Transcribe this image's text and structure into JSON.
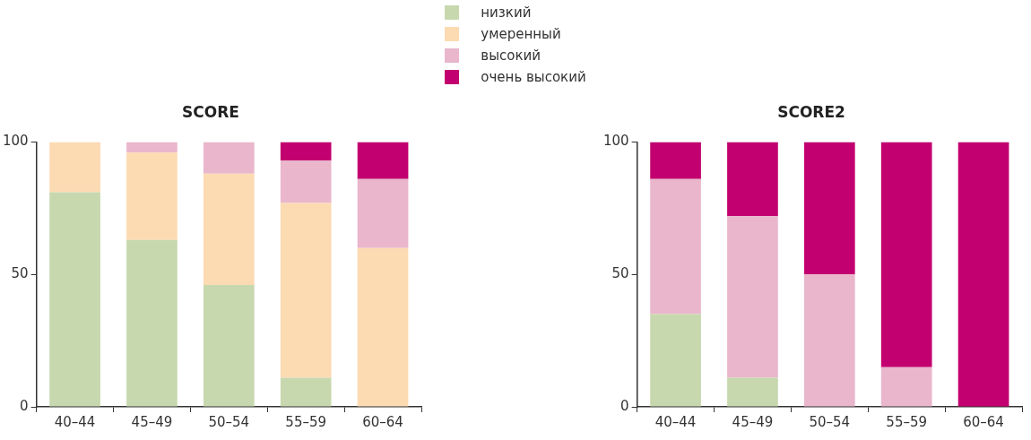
{
  "chart_data": [
    {
      "type": "bar",
      "title": "SCORE",
      "categories": [
        "40–44",
        "45–49",
        "50–54",
        "55–59",
        "60–64"
      ],
      "stacked": true,
      "ylim": [
        0,
        100
      ],
      "yticks": [
        0,
        50,
        100
      ],
      "grid": false,
      "legend": "top",
      "series": [
        {
          "name": "низкий",
          "color": "#c8d8ae",
          "values": [
            81,
            63,
            46,
            11,
            0
          ]
        },
        {
          "name": "умеренный",
          "color": "#fcdab2",
          "values": [
            19,
            33,
            42,
            66,
            60
          ]
        },
        {
          "name": "высокий",
          "color": "#e9b6cc",
          "values": [
            0,
            4,
            12,
            16,
            26
          ]
        },
        {
          "name": "очень высокий",
          "color": "#c2006f",
          "values": [
            0,
            0,
            0,
            7,
            14
          ]
        }
      ]
    },
    {
      "type": "bar",
      "title": "SCORE2",
      "categories": [
        "40–44",
        "45–49",
        "50–54",
        "55–59",
        "60–64"
      ],
      "stacked": true,
      "ylim": [
        0,
        100
      ],
      "yticks": [
        0,
        50,
        100
      ],
      "grid": false,
      "legend": "top",
      "series": [
        {
          "name": "низкий",
          "color": "#c8d8ae",
          "values": [
            35,
            11,
            0,
            0,
            0
          ]
        },
        {
          "name": "умеренный",
          "color": "#fcdab2",
          "values": [
            0,
            0,
            0,
            0,
            0
          ]
        },
        {
          "name": "высокий",
          "color": "#e9b6cc",
          "values": [
            51,
            61,
            50,
            15,
            0
          ]
        },
        {
          "name": "очень высокий",
          "color": "#c2006f",
          "values": [
            14,
            28,
            50,
            85,
            100
          ]
        }
      ]
    }
  ]
}
